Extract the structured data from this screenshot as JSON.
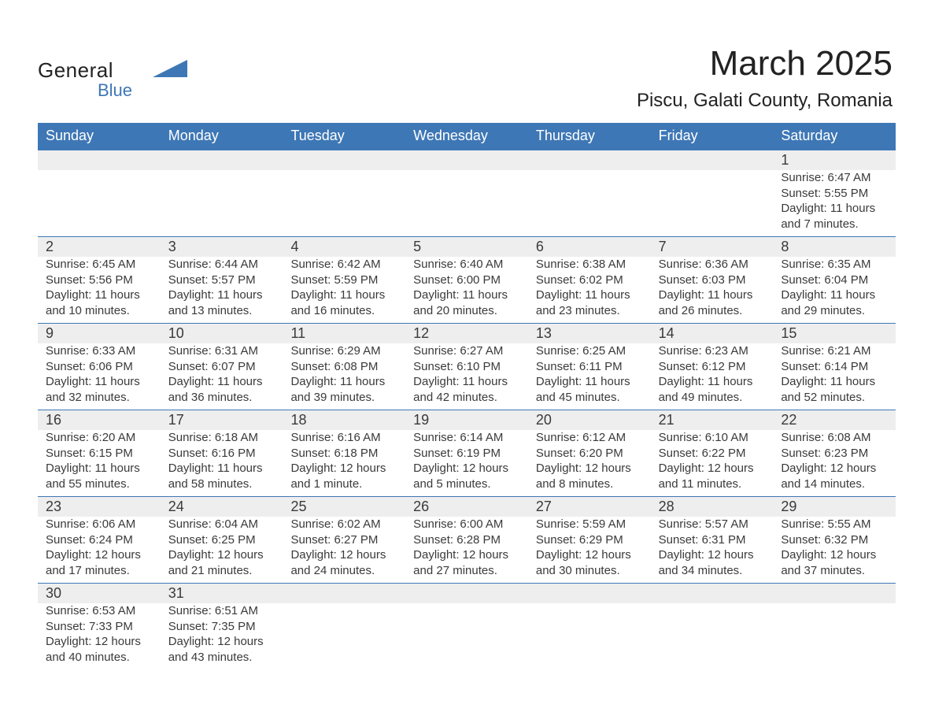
{
  "logo": {
    "general": "General",
    "blue": "Blue"
  },
  "title": "March 2025",
  "location": "Piscu, Galati County, Romania",
  "colors": {
    "header_bg": "#3e77b5",
    "header_text": "#ffffff",
    "daynum_bg": "#eeeeee",
    "row_border": "#3e77b5",
    "text": "#3a3a3a"
  },
  "fonts": {
    "title_size": 44,
    "location_size": 24,
    "header_size": 18,
    "daynum_size": 18,
    "body_size": 15
  },
  "day_headers": [
    "Sunday",
    "Monday",
    "Tuesday",
    "Wednesday",
    "Thursday",
    "Friday",
    "Saturday"
  ],
  "weeks": [
    [
      null,
      null,
      null,
      null,
      null,
      null,
      {
        "d": "1",
        "sr": "Sunrise: 6:47 AM",
        "ss": "Sunset: 5:55 PM",
        "dl1": "Daylight: 11 hours",
        "dl2": "and 7 minutes."
      }
    ],
    [
      {
        "d": "2",
        "sr": "Sunrise: 6:45 AM",
        "ss": "Sunset: 5:56 PM",
        "dl1": "Daylight: 11 hours",
        "dl2": "and 10 minutes."
      },
      {
        "d": "3",
        "sr": "Sunrise: 6:44 AM",
        "ss": "Sunset: 5:57 PM",
        "dl1": "Daylight: 11 hours",
        "dl2": "and 13 minutes."
      },
      {
        "d": "4",
        "sr": "Sunrise: 6:42 AM",
        "ss": "Sunset: 5:59 PM",
        "dl1": "Daylight: 11 hours",
        "dl2": "and 16 minutes."
      },
      {
        "d": "5",
        "sr": "Sunrise: 6:40 AM",
        "ss": "Sunset: 6:00 PM",
        "dl1": "Daylight: 11 hours",
        "dl2": "and 20 minutes."
      },
      {
        "d": "6",
        "sr": "Sunrise: 6:38 AM",
        "ss": "Sunset: 6:02 PM",
        "dl1": "Daylight: 11 hours",
        "dl2": "and 23 minutes."
      },
      {
        "d": "7",
        "sr": "Sunrise: 6:36 AM",
        "ss": "Sunset: 6:03 PM",
        "dl1": "Daylight: 11 hours",
        "dl2": "and 26 minutes."
      },
      {
        "d": "8",
        "sr": "Sunrise: 6:35 AM",
        "ss": "Sunset: 6:04 PM",
        "dl1": "Daylight: 11 hours",
        "dl2": "and 29 minutes."
      }
    ],
    [
      {
        "d": "9",
        "sr": "Sunrise: 6:33 AM",
        "ss": "Sunset: 6:06 PM",
        "dl1": "Daylight: 11 hours",
        "dl2": "and 32 minutes."
      },
      {
        "d": "10",
        "sr": "Sunrise: 6:31 AM",
        "ss": "Sunset: 6:07 PM",
        "dl1": "Daylight: 11 hours",
        "dl2": "and 36 minutes."
      },
      {
        "d": "11",
        "sr": "Sunrise: 6:29 AM",
        "ss": "Sunset: 6:08 PM",
        "dl1": "Daylight: 11 hours",
        "dl2": "and 39 minutes."
      },
      {
        "d": "12",
        "sr": "Sunrise: 6:27 AM",
        "ss": "Sunset: 6:10 PM",
        "dl1": "Daylight: 11 hours",
        "dl2": "and 42 minutes."
      },
      {
        "d": "13",
        "sr": "Sunrise: 6:25 AM",
        "ss": "Sunset: 6:11 PM",
        "dl1": "Daylight: 11 hours",
        "dl2": "and 45 minutes."
      },
      {
        "d": "14",
        "sr": "Sunrise: 6:23 AM",
        "ss": "Sunset: 6:12 PM",
        "dl1": "Daylight: 11 hours",
        "dl2": "and 49 minutes."
      },
      {
        "d": "15",
        "sr": "Sunrise: 6:21 AM",
        "ss": "Sunset: 6:14 PM",
        "dl1": "Daylight: 11 hours",
        "dl2": "and 52 minutes."
      }
    ],
    [
      {
        "d": "16",
        "sr": "Sunrise: 6:20 AM",
        "ss": "Sunset: 6:15 PM",
        "dl1": "Daylight: 11 hours",
        "dl2": "and 55 minutes."
      },
      {
        "d": "17",
        "sr": "Sunrise: 6:18 AM",
        "ss": "Sunset: 6:16 PM",
        "dl1": "Daylight: 11 hours",
        "dl2": "and 58 minutes."
      },
      {
        "d": "18",
        "sr": "Sunrise: 6:16 AM",
        "ss": "Sunset: 6:18 PM",
        "dl1": "Daylight: 12 hours",
        "dl2": "and 1 minute."
      },
      {
        "d": "19",
        "sr": "Sunrise: 6:14 AM",
        "ss": "Sunset: 6:19 PM",
        "dl1": "Daylight: 12 hours",
        "dl2": "and 5 minutes."
      },
      {
        "d": "20",
        "sr": "Sunrise: 6:12 AM",
        "ss": "Sunset: 6:20 PM",
        "dl1": "Daylight: 12 hours",
        "dl2": "and 8 minutes."
      },
      {
        "d": "21",
        "sr": "Sunrise: 6:10 AM",
        "ss": "Sunset: 6:22 PM",
        "dl1": "Daylight: 12 hours",
        "dl2": "and 11 minutes."
      },
      {
        "d": "22",
        "sr": "Sunrise: 6:08 AM",
        "ss": "Sunset: 6:23 PM",
        "dl1": "Daylight: 12 hours",
        "dl2": "and 14 minutes."
      }
    ],
    [
      {
        "d": "23",
        "sr": "Sunrise: 6:06 AM",
        "ss": "Sunset: 6:24 PM",
        "dl1": "Daylight: 12 hours",
        "dl2": "and 17 minutes."
      },
      {
        "d": "24",
        "sr": "Sunrise: 6:04 AM",
        "ss": "Sunset: 6:25 PM",
        "dl1": "Daylight: 12 hours",
        "dl2": "and 21 minutes."
      },
      {
        "d": "25",
        "sr": "Sunrise: 6:02 AM",
        "ss": "Sunset: 6:27 PM",
        "dl1": "Daylight: 12 hours",
        "dl2": "and 24 minutes."
      },
      {
        "d": "26",
        "sr": "Sunrise: 6:00 AM",
        "ss": "Sunset: 6:28 PM",
        "dl1": "Daylight: 12 hours",
        "dl2": "and 27 minutes."
      },
      {
        "d": "27",
        "sr": "Sunrise: 5:59 AM",
        "ss": "Sunset: 6:29 PM",
        "dl1": "Daylight: 12 hours",
        "dl2": "and 30 minutes."
      },
      {
        "d": "28",
        "sr": "Sunrise: 5:57 AM",
        "ss": "Sunset: 6:31 PM",
        "dl1": "Daylight: 12 hours",
        "dl2": "and 34 minutes."
      },
      {
        "d": "29",
        "sr": "Sunrise: 5:55 AM",
        "ss": "Sunset: 6:32 PM",
        "dl1": "Daylight: 12 hours",
        "dl2": "and 37 minutes."
      }
    ],
    [
      {
        "d": "30",
        "sr": "Sunrise: 6:53 AM",
        "ss": "Sunset: 7:33 PM",
        "dl1": "Daylight: 12 hours",
        "dl2": "and 40 minutes."
      },
      {
        "d": "31",
        "sr": "Sunrise: 6:51 AM",
        "ss": "Sunset: 7:35 PM",
        "dl1": "Daylight: 12 hours",
        "dl2": "and 43 minutes."
      },
      null,
      null,
      null,
      null,
      null
    ]
  ]
}
